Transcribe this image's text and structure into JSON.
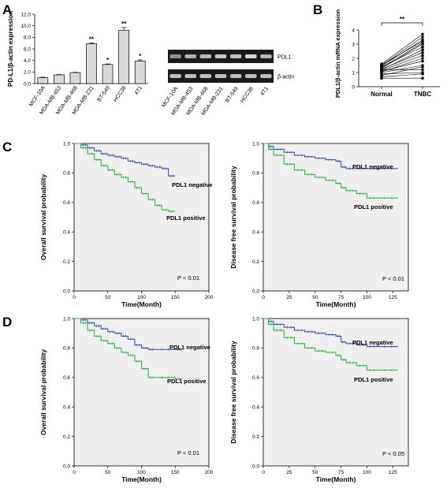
{
  "figure": {
    "panels": [
      "A",
      "B",
      "C",
      "D"
    ],
    "km_bg": "#efefef",
    "neg_color": "#3f58a8",
    "pos_color": "#3cb34a"
  },
  "chart_data": [
    {
      "id": "A-bar",
      "type": "bar",
      "ylabel": "PD-L1/β-actin expression",
      "yticks": [
        "0.0",
        "2.0",
        "4.0",
        "6.0",
        "8.0",
        "10.0",
        "12.0"
      ],
      "ylim": [
        0,
        12
      ],
      "categories": [
        "MCF-10A",
        "MDA-MB-453",
        "MDA-MB-468",
        "MDA-MB-231",
        "BT-549",
        "HCC38",
        "4T1"
      ],
      "values": [
        1.0,
        1.5,
        1.9,
        6.9,
        3.3,
        9.2,
        3.9
      ],
      "errors": [
        0.1,
        0.05,
        0.05,
        0.1,
        0.1,
        0.5,
        0.2
      ],
      "significance": [
        "",
        "",
        "",
        "**",
        "*",
        "**",
        "*"
      ],
      "bar_color": "#d9d9d9"
    },
    {
      "id": "A-blot",
      "type": "table",
      "rows": [
        "PDL1",
        "β-actin"
      ],
      "lanes": [
        "MCF-10A",
        "MDA-MB-453",
        "MDA-MB-468",
        "MDA-MB-231",
        "BT-549",
        "HCC38",
        "4T1"
      ],
      "pdl1_intensity": [
        0.5,
        0.7,
        0.75,
        0.85,
        0.8,
        0.95,
        0.75
      ],
      "actin_intensity": [
        0.8,
        0.8,
        0.8,
        0.8,
        0.8,
        0.8,
        0.8
      ]
    },
    {
      "id": "B-paired",
      "type": "line",
      "ylabel": "PDL1/β-actin mRNA expression",
      "categories": [
        "Normal",
        "TNBC"
      ],
      "ylim": [
        0,
        4
      ],
      "yticks": [
        "0",
        "1",
        "2",
        "3",
        "4"
      ],
      "pairs": [
        [
          0.6,
          0.6
        ],
        [
          0.7,
          0.9
        ],
        [
          0.8,
          1.4
        ],
        [
          0.9,
          1.0
        ],
        [
          1.0,
          1.5
        ],
        [
          1.05,
          2.0
        ],
        [
          1.1,
          1.8
        ],
        [
          1.15,
          2.2
        ],
        [
          1.2,
          2.6
        ],
        [
          1.25,
          2.4
        ],
        [
          1.3,
          3.0
        ],
        [
          1.35,
          3.1
        ],
        [
          1.4,
          2.8
        ],
        [
          1.45,
          3.3
        ],
        [
          1.5,
          3.5
        ],
        [
          1.55,
          3.2
        ],
        [
          1.6,
          3.7
        ],
        [
          1.2,
          1.2
        ]
      ],
      "significance": "**"
    },
    {
      "id": "C-os",
      "type": "line",
      "ylabel": "Overall survival probability",
      "xlabel": "Time(Month)",
      "xlim": [
        0,
        200
      ],
      "xticks": [
        "0",
        "50",
        "100",
        "150",
        "200"
      ],
      "ylim": [
        0,
        1
      ],
      "yticks": [
        "0.0",
        "0.2",
        "0.4",
        "0.6",
        "0.8",
        "1.0"
      ],
      "series": [
        {
          "name": "PDL1 negative",
          "points": [
            [
              0,
              1
            ],
            [
              10,
              0.99
            ],
            [
              20,
              0.97
            ],
            [
              30,
              0.95
            ],
            [
              40,
              0.93
            ],
            [
              50,
              0.92
            ],
            [
              60,
              0.91
            ],
            [
              70,
              0.9
            ],
            [
              80,
              0.88
            ],
            [
              90,
              0.87
            ],
            [
              100,
              0.86
            ],
            [
              110,
              0.85
            ],
            [
              120,
              0.84
            ],
            [
              130,
              0.83
            ],
            [
              140,
              0.78
            ],
            [
              150,
              0.78
            ]
          ]
        },
        {
          "name": "PDL1 positive",
          "points": [
            [
              0,
              1
            ],
            [
              10,
              0.97
            ],
            [
              20,
              0.93
            ],
            [
              30,
              0.89
            ],
            [
              40,
              0.85
            ],
            [
              50,
              0.82
            ],
            [
              60,
              0.79
            ],
            [
              70,
              0.77
            ],
            [
              80,
              0.74
            ],
            [
              90,
              0.7
            ],
            [
              100,
              0.66
            ],
            [
              110,
              0.62
            ],
            [
              120,
              0.58
            ],
            [
              130,
              0.55
            ],
            [
              140,
              0.54
            ],
            [
              150,
              0.54
            ]
          ]
        }
      ],
      "annotation": "P < 0.01"
    },
    {
      "id": "C-dfs",
      "type": "line",
      "ylabel": "Disease free survival probability",
      "xlabel": "Time(Month)",
      "xlim": [
        0,
        140
      ],
      "xticks": [
        "0",
        "25",
        "50",
        "75",
        "100",
        "125"
      ],
      "ylim": [
        0,
        1
      ],
      "yticks": [
        "0.0",
        "0.2",
        "0.4",
        "0.6",
        "0.8",
        "1.0"
      ],
      "series": [
        {
          "name": "PDL1 negative",
          "points": [
            [
              0,
              1
            ],
            [
              5,
              0.98
            ],
            [
              10,
              0.96
            ],
            [
              20,
              0.94
            ],
            [
              30,
              0.92
            ],
            [
              40,
              0.91
            ],
            [
              50,
              0.9
            ],
            [
              60,
              0.89
            ],
            [
              70,
              0.88
            ],
            [
              75,
              0.84
            ],
            [
              80,
              0.83
            ],
            [
              90,
              0.83
            ],
            [
              100,
              0.83
            ],
            [
              110,
              0.83
            ],
            [
              130,
              0.83
            ]
          ]
        },
        {
          "name": "PDL1 positive",
          "points": [
            [
              0,
              1
            ],
            [
              5,
              0.96
            ],
            [
              10,
              0.92
            ],
            [
              20,
              0.86
            ],
            [
              30,
              0.82
            ],
            [
              40,
              0.79
            ],
            [
              50,
              0.77
            ],
            [
              60,
              0.75
            ],
            [
              70,
              0.73
            ],
            [
              75,
              0.7
            ],
            [
              80,
              0.68
            ],
            [
              90,
              0.66
            ],
            [
              100,
              0.63
            ],
            [
              110,
              0.63
            ],
            [
              130,
              0.63
            ]
          ]
        }
      ],
      "annotation": "P < 0.01"
    },
    {
      "id": "D-os",
      "type": "line",
      "ylabel": "Overall survival probability",
      "xlabel": "Time(Month)",
      "xlim": [
        0,
        200
      ],
      "xticks": [
        "0",
        "50",
        "100",
        "150",
        "200"
      ],
      "ylim": [
        0,
        1
      ],
      "yticks": [
        "0.0",
        "0.2",
        "0.4",
        "0.6",
        "0.8",
        "1.0"
      ],
      "series": [
        {
          "name": "PDL1 negative",
          "points": [
            [
              0,
              1
            ],
            [
              10,
              0.99
            ],
            [
              20,
              0.97
            ],
            [
              30,
              0.95
            ],
            [
              40,
              0.93
            ],
            [
              50,
              0.91
            ],
            [
              60,
              0.9
            ],
            [
              70,
              0.88
            ],
            [
              80,
              0.86
            ],
            [
              90,
              0.82
            ],
            [
              100,
              0.8
            ],
            [
              110,
              0.79
            ],
            [
              120,
              0.79
            ],
            [
              150,
              0.79
            ],
            [
              160,
              0.79
            ]
          ]
        },
        {
          "name": "PDL1 positive",
          "points": [
            [
              0,
              1
            ],
            [
              10,
              0.97
            ],
            [
              20,
              0.92
            ],
            [
              30,
              0.88
            ],
            [
              40,
              0.85
            ],
            [
              50,
              0.83
            ],
            [
              60,
              0.8
            ],
            [
              70,
              0.77
            ],
            [
              80,
              0.75
            ],
            [
              90,
              0.71
            ],
            [
              100,
              0.66
            ],
            [
              110,
              0.6
            ],
            [
              120,
              0.6
            ],
            [
              150,
              0.59
            ],
            [
              160,
              0.59
            ]
          ]
        }
      ],
      "annotation": "P < 0.01"
    },
    {
      "id": "D-dfs",
      "type": "line",
      "ylabel": "Disease free survival probability",
      "xlabel": "Time(Month)",
      "xlim": [
        0,
        140
      ],
      "xticks": [
        "0",
        "25",
        "50",
        "75",
        "100",
        "125"
      ],
      "ylim": [
        0,
        1
      ],
      "yticks": [
        "0.0",
        "0.2",
        "0.4",
        "0.6",
        "0.8",
        "1.0"
      ],
      "series": [
        {
          "name": "PDL1 negative",
          "points": [
            [
              0,
              1
            ],
            [
              5,
              0.98
            ],
            [
              10,
              0.96
            ],
            [
              20,
              0.94
            ],
            [
              30,
              0.92
            ],
            [
              40,
              0.91
            ],
            [
              50,
              0.9
            ],
            [
              60,
              0.89
            ],
            [
              70,
              0.88
            ],
            [
              75,
              0.84
            ],
            [
              80,
              0.83
            ],
            [
              90,
              0.82
            ],
            [
              100,
              0.81
            ],
            [
              110,
              0.81
            ],
            [
              130,
              0.81
            ]
          ]
        },
        {
          "name": "PDL1 positive",
          "points": [
            [
              0,
              1
            ],
            [
              5,
              0.96
            ],
            [
              10,
              0.92
            ],
            [
              20,
              0.87
            ],
            [
              30,
              0.83
            ],
            [
              40,
              0.8
            ],
            [
              50,
              0.78
            ],
            [
              60,
              0.77
            ],
            [
              70,
              0.75
            ],
            [
              75,
              0.72
            ],
            [
              80,
              0.7
            ],
            [
              90,
              0.68
            ],
            [
              100,
              0.65
            ],
            [
              110,
              0.65
            ],
            [
              130,
              0.65
            ]
          ]
        }
      ],
      "annotation": "P < 0.05"
    }
  ]
}
